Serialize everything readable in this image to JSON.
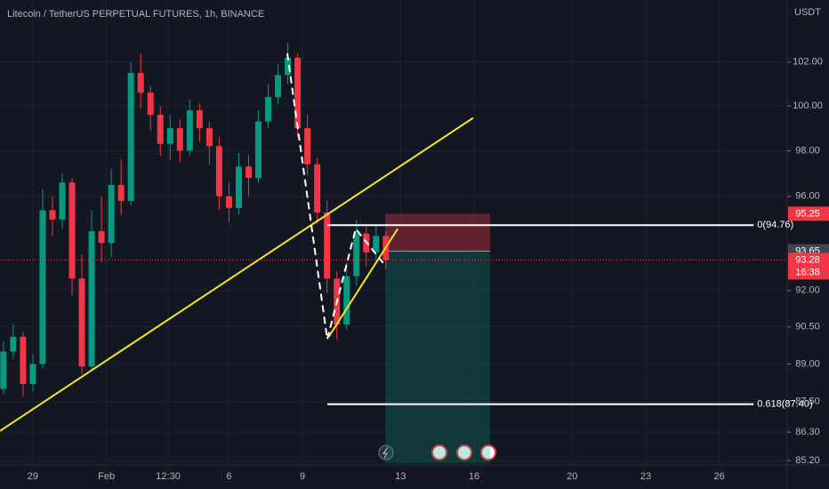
{
  "chart_data": {
    "type": "candlestick",
    "title": "Litecoin / TetherUS PERPETUAL FUTURES, 1h, BINANCE",
    "currency": "USDT",
    "log_scale": true,
    "grid": true,
    "up_color": "#089981",
    "down_color": "#f23645",
    "candles": {
      "x": [
        -1.2,
        -0.8,
        -0.4,
        0,
        0.4,
        0.8,
        1.2,
        1.6,
        2,
        2.4,
        2.8,
        3.2,
        3.6,
        4,
        4.4,
        4.8,
        5.2,
        5.6,
        6,
        6.4,
        6.8,
        7.2,
        7.6,
        8,
        8.4,
        8.8,
        9.2,
        9.6,
        10,
        10.4,
        10.8,
        11.2,
        11.6,
        12,
        12.4,
        12.8,
        13.2,
        13.6,
        14,
        14.4
      ],
      "open": [
        88.0,
        89.5,
        90.1,
        88.2,
        89.0,
        95.4,
        95.0,
        96.6,
        92.5,
        88.9,
        94.5,
        94.0,
        96.5,
        95.8,
        101.5,
        100.6,
        99.6,
        98.3,
        99.0,
        98.0,
        99.8,
        99.0,
        98.2,
        96.0,
        95.5,
        97.3,
        96.8,
        99.3,
        100.4,
        101.4,
        102.2,
        99.0,
        97.4,
        95.3,
        92.5,
        90.6,
        92.6,
        94.4,
        93.6,
        94.3
      ],
      "high": [
        89.9,
        90.6,
        90.3,
        89.4,
        96.3,
        96.0,
        97.0,
        96.8,
        93.5,
        95.4,
        96.0,
        97.2,
        97.6,
        102.0,
        102.4,
        100.9,
        100.0,
        99.6,
        99.4,
        100.3,
        100.1,
        99.3,
        98.6,
        96.6,
        97.9,
        97.8,
        99.8,
        101.0,
        101.9,
        102.9,
        102.4,
        99.6,
        97.7,
        95.8,
        92.8,
        93.2,
        95.0,
        94.7,
        94.8,
        94.5
      ],
      "low": [
        87.8,
        89.2,
        87.7,
        87.9,
        88.8,
        94.3,
        94.6,
        91.8,
        88.6,
        88.8,
        93.2,
        93.4,
        95.2,
        95.6,
        99.9,
        98.9,
        97.8,
        97.6,
        97.5,
        97.8,
        98.4,
        97.4,
        95.4,
        94.9,
        95.2,
        96.0,
        96.6,
        99.0,
        100.1,
        101.0,
        98.6,
        96.9,
        94.8,
        91.9,
        90.0,
        90.4,
        92.2,
        93.0,
        93.2,
        92.9
      ],
      "close": [
        89.5,
        90.1,
        88.2,
        89.0,
        95.4,
        95.0,
        96.6,
        92.5,
        88.9,
        94.5,
        94.0,
        96.5,
        95.8,
        101.5,
        100.6,
        99.6,
        98.3,
        99.0,
        98.0,
        99.8,
        99.0,
        98.2,
        96.0,
        95.5,
        97.3,
        96.8,
        99.3,
        100.4,
        101.4,
        102.2,
        99.0,
        97.4,
        95.3,
        92.5,
        90.6,
        92.6,
        94.4,
        93.6,
        94.3,
        93.28
      ]
    },
    "xlim": [
      -1.34,
      30.77
    ],
    "xticks": [
      {
        "value": 0,
        "label": "29"
      },
      {
        "value": 3,
        "label": "Feb"
      },
      {
        "value": 5.52,
        "label": "12:30"
      },
      {
        "value": 8,
        "label": "6"
      },
      {
        "value": 11,
        "label": "9"
      },
      {
        "value": 15,
        "label": "13"
      },
      {
        "value": 18,
        "label": "16"
      },
      {
        "value": 22,
        "label": "20"
      },
      {
        "value": 25,
        "label": "23"
      },
      {
        "value": 28,
        "label": "26"
      }
    ],
    "ylim": [
      85.1,
      104.9
    ],
    "yticks": [
      {
        "value": 102,
        "label": "102.00"
      },
      {
        "value": 100,
        "label": "100.00"
      },
      {
        "value": 98,
        "label": "98.00"
      },
      {
        "value": 96,
        "label": "96.00"
      },
      {
        "value": 92,
        "label": "92.00"
      },
      {
        "value": 90.5,
        "label": "90.50"
      },
      {
        "value": 89,
        "label": "89.00"
      },
      {
        "value": 87.5,
        "label": "87.50"
      },
      {
        "value": 86.3,
        "label": "86.30"
      },
      {
        "value": 85.2,
        "label": "85.20"
      }
    ],
    "trendline": {
      "x": [
        -1.34,
        17.96
      ],
      "y": [
        86.35,
        99.46
      ],
      "color": "#f5e62b"
    },
    "wedge_line": {
      "x": [
        12.07,
        14.88
      ],
      "y": [
        90.1,
        94.6
      ],
      "color": "#f5e62b"
    },
    "zigzag": {
      "x": [
        10.38,
        12.01,
        13.17,
        14.33
      ],
      "y": [
        102.4,
        90.0,
        94.6,
        93.1
      ],
      "color": "#ffffff"
    },
    "fib_levels": {
      "x": [
        12.01,
        29.4
      ],
      "levels": [
        {
          "value": 94.76,
          "label": "0(94.76)"
        },
        {
          "value": 87.4,
          "label": "0.618(87.40)"
        }
      ]
    },
    "position": {
      "x": [
        14.37,
        18.65
      ],
      "stop": {
        "value": 95.25,
        "label": "95.25"
      },
      "entry": {
        "value": 93.65,
        "label": "93.65"
      },
      "target": 85.1
    },
    "last_price": {
      "value": 93.28,
      "label": "93.28",
      "countdown": "16:38"
    }
  }
}
